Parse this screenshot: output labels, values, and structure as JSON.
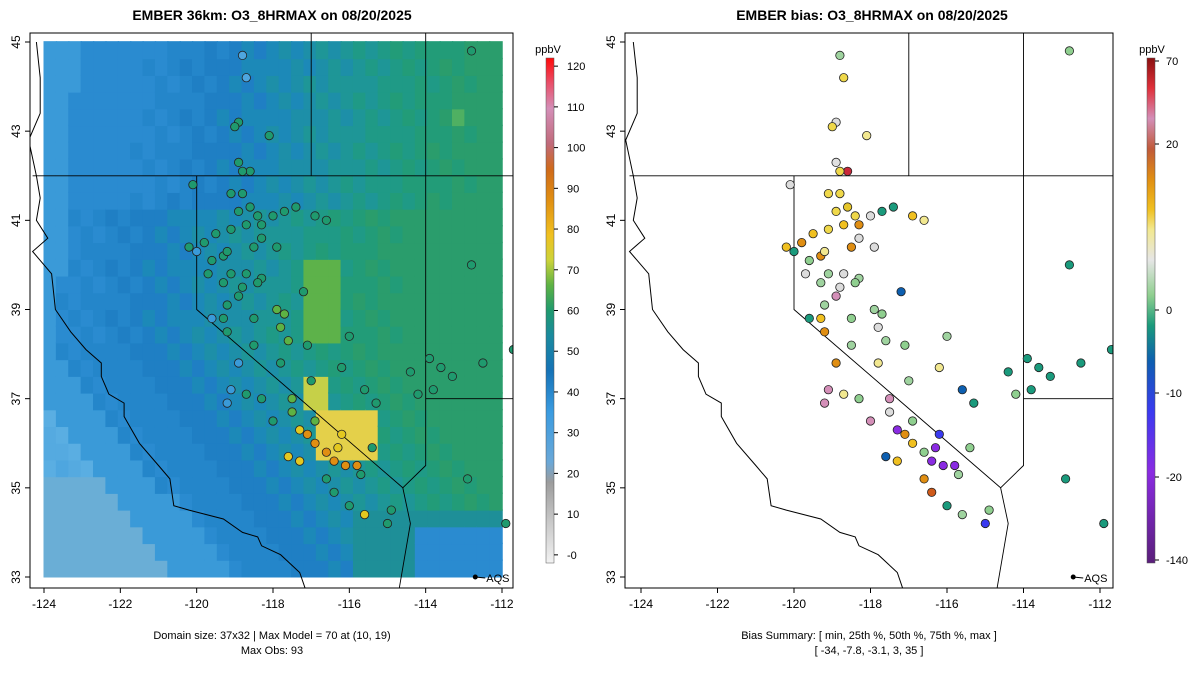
{
  "left_panel": {
    "title": "EMBER 36km: O3_8HRMAX on 08/20/2025",
    "footer_line1": "Domain size: 37x32 | Max Model = 70 at (10, 19)",
    "footer_line2": "Max Obs: 93",
    "colorbar": {
      "unit": "ppbV",
      "ticks": [
        "-0",
        "10",
        "20",
        "30",
        "40",
        "50",
        "60",
        "70",
        "80",
        "90",
        "100",
        "110",
        "120"
      ],
      "tick_values": [
        0,
        10,
        20,
        30,
        40,
        50,
        60,
        70,
        80,
        90,
        100,
        110,
        120
      ],
      "range": [
        -2,
        122
      ]
    }
  },
  "right_panel": {
    "title": "EMBER bias: O3_8HRMAX on 08/20/2025",
    "footer_line1": "Bias Summary: [ min, 25th %, 50th %, 75th %, max ]",
    "footer_line2": "[ -34,   -7.8,   -3.1,   3,   35 ]",
    "colorbar": {
      "unit": "ppbV",
      "ticks": [
        "70",
        "20",
        "0",
        "-10",
        "-20",
        "-140"
      ],
      "tick_values": [
        70,
        20,
        0,
        -10,
        -20,
        -140
      ]
    }
  },
  "axes": {
    "x_ticks": [
      "-124",
      "-122",
      "-120",
      "-118",
      "-116",
      "-114",
      "-112"
    ],
    "x_values": [
      -124,
      -122,
      -120,
      -118,
      -116,
      -114,
      -112
    ],
    "y_ticks": [
      "33",
      "35",
      "37",
      "39",
      "41",
      "43",
      "45"
    ],
    "y_values": [
      33,
      35,
      37,
      39,
      41,
      43,
      45
    ],
    "lon_range": [
      -124.3,
      -111.6
    ],
    "lat_range": [
      32.7,
      45.2
    ]
  },
  "aqs_label": "AQS",
  "colors": {
    "ocean": "#54a9e0",
    "model_low": "#2a8bd0",
    "model_mid": "#1a9a7c",
    "model_high": "#efd84a",
    "obs_high": "#e07a12",
    "border": "#000000"
  }
}
